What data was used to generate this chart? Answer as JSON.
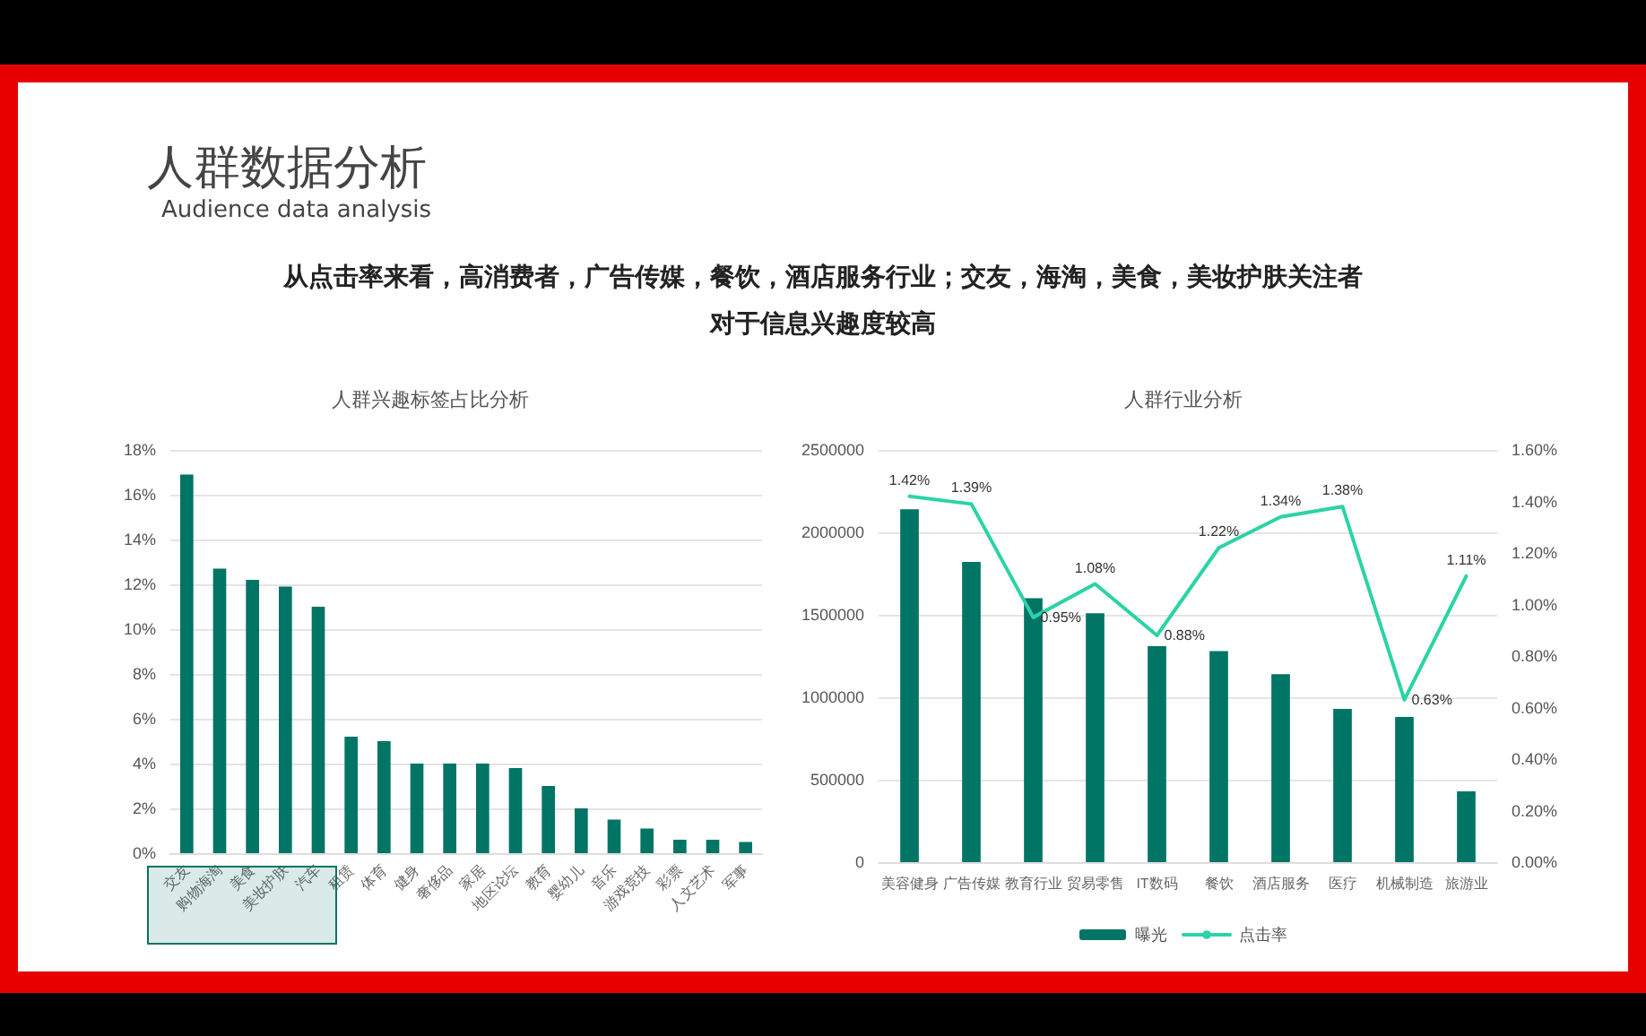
{
  "chart_data": [
    {
      "type": "bar",
      "title": "人群兴趣标签占比分析",
      "annotations": [
        "人群数据分析",
        "Audience data analysis",
        "从点击率来看，高消费者，广告传媒，餐饮，酒店服务行业；交友，海淘，美食，美妆护肤关注者",
        "对于信息兴趣度较高"
      ],
      "categories": [
        "交友",
        "购物海淘",
        "美食",
        "美妆护肤",
        "汽车",
        "租赁",
        "体育",
        "健身",
        "奢侈品",
        "家居",
        "地区论坛",
        "教育",
        "婴幼儿",
        "音乐",
        "游戏竞技",
        "彩票",
        "人文艺术",
        "军事"
      ],
      "values": [
        16.9,
        12.7,
        12.2,
        11.9,
        11.0,
        5.2,
        5.0,
        4.0,
        4.0,
        4.0,
        3.8,
        3.0,
        2.0,
        1.5,
        1.1,
        0.6,
        0.6,
        0.5
      ],
      "color": "#007566",
      "ylim": [
        0,
        18
      ],
      "yticks": [
        {
          "value": 0,
          "label": "0%"
        },
        {
          "value": 2,
          "label": "2%"
        },
        {
          "value": 4,
          "label": "4%"
        },
        {
          "value": 6,
          "label": "6%"
        },
        {
          "value": 8,
          "label": "8%"
        },
        {
          "value": 10,
          "label": "10%"
        },
        {
          "value": 12,
          "label": "12%"
        },
        {
          "value": 14,
          "label": "14%"
        },
        {
          "value": 16,
          "label": "16%"
        },
        {
          "value": 18,
          "label": "18%"
        }
      ],
      "grid": "y"
    },
    {
      "type": "bar",
      "title": "人群行业分析",
      "categories": [
        "美容健身",
        "广告传媒",
        "教育行业",
        "贸易零售",
        "IT数码",
        "餐饮",
        "酒店服务",
        "医疗",
        "机械制造",
        "旅游业"
      ],
      "series": [
        {
          "name": "曝光",
          "color": "#007566",
          "values": [
            2140000,
            1820000,
            1600000,
            1510000,
            1310000,
            1280000,
            1140000,
            930000,
            880000,
            430000
          ]
        },
        {
          "name": "点击率",
          "type": "line",
          "axis": "y2",
          "color": "#2bd3a6",
          "values": [
            1.42,
            1.39,
            0.95,
            1.08,
            0.88,
            1.22,
            1.34,
            1.38,
            0.63,
            1.11
          ],
          "value_labels": [
            "1.42%",
            "1.39%",
            "0.95%",
            "1.08%",
            "0.88%",
            "1.22%",
            "1.34%",
            "1.38%",
            "0.63%",
            "1.11%"
          ]
        }
      ],
      "ylim": [
        0,
        2500000
      ],
      "yticks": [
        0,
        500000,
        1000000,
        1500000,
        2000000,
        2500000
      ],
      "y2lim": [
        0,
        1.6
      ],
      "y2ticks": [
        {
          "value": 0,
          "label": "0.00%"
        },
        {
          "value": 0.2,
          "label": "0.20%"
        },
        {
          "value": 0.4,
          "label": "0.40%"
        },
        {
          "value": 0.6,
          "label": "0.60%"
        },
        {
          "value": 0.8,
          "label": "0.80%"
        },
        {
          "value": 1.0,
          "label": "1.00%"
        },
        {
          "value": 1.2,
          "label": "1.20%"
        },
        {
          "value": 1.4,
          "label": "1.40%"
        },
        {
          "value": 1.6,
          "label": "1.60%"
        }
      ],
      "grid": "y",
      "legend": "bottom",
      "marker": "none",
      "line_style": "solid"
    }
  ]
}
